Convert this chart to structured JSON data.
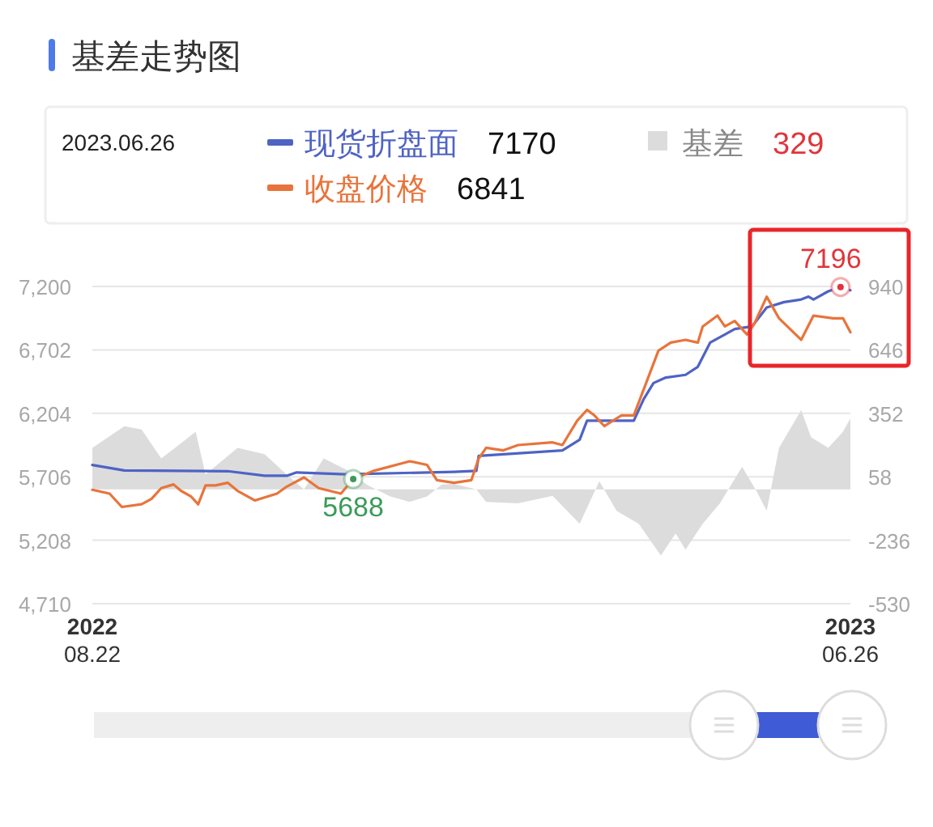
{
  "chart_data": {
    "type": "line",
    "title": "基差走势图",
    "xlim": [
      "2022-08-22",
      "2023-06-26"
    ],
    "xticks": [
      {
        "value": "2022-08-22",
        "label": "2022\n08.22"
      },
      {
        "value": "2023-06-26",
        "label": "2023\n06.26"
      }
    ],
    "ylim": [
      4710,
      7200
    ],
    "yticks": [
      {
        "value": 4710,
        "label": "4,710"
      },
      {
        "value": 5208,
        "label": "5,208"
      },
      {
        "value": 5706,
        "label": "5,706"
      },
      {
        "value": 6204,
        "label": "6,204"
      },
      {
        "value": 6702,
        "label": "6,702"
      },
      {
        "value": 7200,
        "label": "7,200"
      }
    ],
    "y2lim": [
      -530,
      940
    ],
    "y2ticks": [
      -530,
      -236,
      58,
      352,
      646,
      940
    ],
    "grid": "y",
    "legend": "top",
    "annotations": [
      "2023.06.26",
      "7170",
      "6841",
      "329",
      {
        "text": "5688",
        "x": "2022-12-06",
        "y": 5688
      },
      {
        "text": "7196",
        "x": "2023-06-22",
        "y": 7196
      }
    ],
    "series": [
      {
        "name": "现货折盘面",
        "color": "#4f63c4",
        "x": [
          "2022-08-22",
          "2022-09-04",
          "2022-10-16",
          "2022-10-31",
          "2022-11-09",
          "2022-11-13",
          "2022-12-03",
          "2023-01-16",
          "2023-01-25",
          "2023-01-26",
          "2023-03-01",
          "2023-03-08",
          "2023-03-11",
          "2023-03-18",
          "2023-03-30",
          "2023-04-03",
          "2023-04-07",
          "2023-04-12",
          "2023-04-20",
          "2023-04-25",
          "2023-04-30",
          "2023-05-06",
          "2023-05-10",
          "2023-05-17",
          "2023-05-23",
          "2023-05-30",
          "2023-06-06",
          "2023-06-09",
          "2023-06-11",
          "2023-06-17",
          "2023-06-22",
          "2023-06-26"
        ],
        "values": [
          5799,
          5756,
          5750,
          5714,
          5714,
          5740,
          5725,
          5745,
          5752,
          5870,
          5913,
          5997,
          6146,
          6146,
          6146,
          6315,
          6442,
          6485,
          6506,
          6569,
          6759,
          6823,
          6866,
          6886,
          7035,
          7077,
          7098,
          7120,
          7098,
          7162,
          7196,
          7170
        ]
      },
      {
        "name": "收盘价格",
        "color": "#e8743b",
        "x": [
          "2022-08-22",
          "2022-08-29",
          "2022-09-03",
          "2022-09-11",
          "2022-09-15",
          "2022-09-19",
          "2022-09-24",
          "2022-09-27",
          "2022-10-01",
          "2022-10-04",
          "2022-10-07",
          "2022-10-11",
          "2022-10-16",
          "2022-10-20",
          "2022-10-27",
          "2022-11-05",
          "2022-11-09",
          "2022-11-16",
          "2022-11-22",
          "2022-12-01",
          "2022-12-06",
          "2022-12-14",
          "2022-12-29",
          "2023-01-05",
          "2023-01-09",
          "2023-01-16",
          "2023-01-23",
          "2023-01-26",
          "2023-01-29",
          "2023-02-05",
          "2023-02-11",
          "2023-02-25",
          "2023-03-01",
          "2023-03-07",
          "2023-03-11",
          "2023-03-14",
          "2023-03-18",
          "2023-03-25",
          "2023-03-30",
          "2023-04-04",
          "2023-04-09",
          "2023-04-14",
          "2023-04-20",
          "2023-04-25",
          "2023-04-27",
          "2023-05-03",
          "2023-05-06",
          "2023-05-10",
          "2023-05-15",
          "2023-05-18",
          "2023-05-23",
          "2023-05-28",
          "2023-06-06",
          "2023-06-11",
          "2023-06-19",
          "2023-06-23",
          "2023-06-26"
        ],
        "values": [
          5604,
          5574,
          5469,
          5490,
          5532,
          5617,
          5646,
          5596,
          5553,
          5490,
          5638,
          5638,
          5659,
          5596,
          5520,
          5574,
          5629,
          5701,
          5617,
          5574,
          5688,
          5751,
          5828,
          5799,
          5680,
          5659,
          5680,
          5850,
          5934,
          5913,
          5955,
          5976,
          5955,
          6146,
          6231,
          6188,
          6104,
          6188,
          6188,
          6442,
          6696,
          6759,
          6781,
          6759,
          6886,
          6971,
          6886,
          6929,
          6823,
          6908,
          7120,
          6950,
          6781,
          6971,
          6950,
          6950,
          6841
        ]
      },
      {
        "name": "基差",
        "type": "area",
        "axis": "y2",
        "color": "#dcdcdc",
        "x": [
          "2022-08-22",
          "2022-09-04",
          "2022-09-11",
          "2022-09-19",
          "2022-09-26",
          "2022-10-03",
          "2022-10-07",
          "2022-10-20",
          "2022-10-31",
          "2022-11-09",
          "2022-11-16",
          "2022-11-24",
          "2022-12-03",
          "2022-12-12",
          "2022-12-21",
          "2022-12-29",
          "2023-01-05",
          "2023-01-11",
          "2023-01-16",
          "2023-01-25",
          "2023-01-29",
          "2023-02-11",
          "2023-02-25",
          "2023-03-08",
          "2023-03-16",
          "2023-03-23",
          "2023-04-01",
          "2023-04-10",
          "2023-04-16",
          "2023-04-20",
          "2023-04-27",
          "2023-05-04",
          "2023-05-13",
          "2023-05-19",
          "2023-05-23",
          "2023-05-28",
          "2023-06-06",
          "2023-06-10",
          "2023-06-17",
          "2023-06-23",
          "2023-06-26"
        ],
        "values": [
          192,
          292,
          277,
          143,
          204,
          267,
          68,
          192,
          163,
          68,
          0,
          143,
          92,
          18,
          -33,
          -58,
          -33,
          22,
          25,
          0,
          -58,
          -65,
          -30,
          -160,
          37,
          -100,
          -160,
          -307,
          -205,
          -280,
          -160,
          -65,
          105,
          -12,
          -100,
          192,
          367,
          242,
          192,
          267,
          329
        ]
      }
    ]
  }
}
